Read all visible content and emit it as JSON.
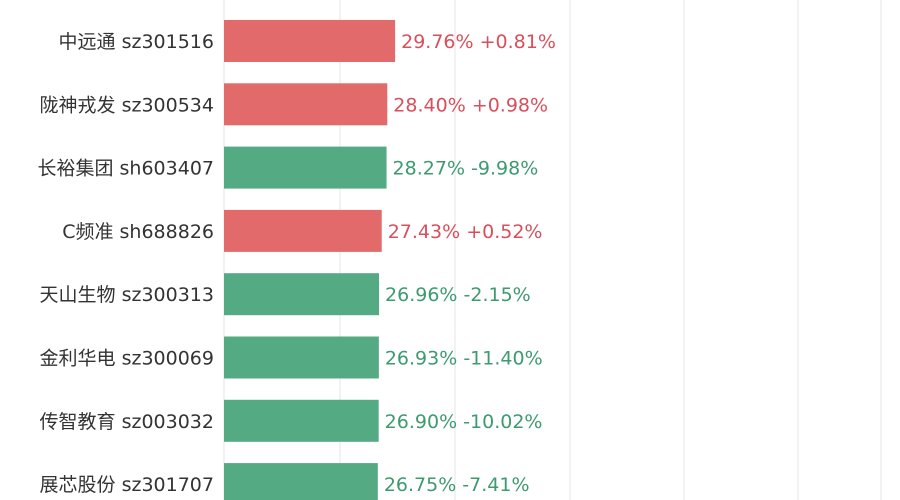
{
  "chart_data": {
    "type": "bar",
    "orientation": "horizontal",
    "title": "",
    "xlabel": "",
    "ylabel": "",
    "xlim": [
      0,
      60
    ],
    "grid": true,
    "colors": {
      "up": "#e36a6a",
      "down": "#53aa83",
      "up_text": "#d94f5c",
      "down_text": "#3e9a6f",
      "label": "#333333",
      "grid": "#e4e4e4"
    },
    "rows": [
      {
        "name": "中远通",
        "code": "sz301516",
        "value": 29.76,
        "value_label": "29.76%",
        "change": "+0.81%",
        "direction": "up"
      },
      {
        "name": "陇神戎发",
        "code": "sz300534",
        "value": 28.4,
        "value_label": "28.40%",
        "change": "+0.98%",
        "direction": "up"
      },
      {
        "name": "长裕集团",
        "code": "sh603407",
        "value": 28.27,
        "value_label": "28.27%",
        "change": "-9.98%",
        "direction": "down"
      },
      {
        "name": "C频准",
        "code": "sh688826",
        "value": 27.43,
        "value_label": "27.43%",
        "change": "+0.52%",
        "direction": "up"
      },
      {
        "name": "天山生物",
        "code": "sz300313",
        "value": 26.96,
        "value_label": "26.96%",
        "change": "-2.15%",
        "direction": "down"
      },
      {
        "name": "金利华电",
        "code": "sz300069",
        "value": 26.93,
        "value_label": "26.93%",
        "change": "-11.40%",
        "direction": "down"
      },
      {
        "name": "传智教育",
        "code": "sz003032",
        "value": 26.9,
        "value_label": "26.90%",
        "change": "-10.02%",
        "direction": "down"
      },
      {
        "name": "展芯股份",
        "code": "sz301707",
        "value": 26.75,
        "value_label": "26.75%",
        "change": "-7.41%",
        "direction": "down"
      }
    ]
  }
}
